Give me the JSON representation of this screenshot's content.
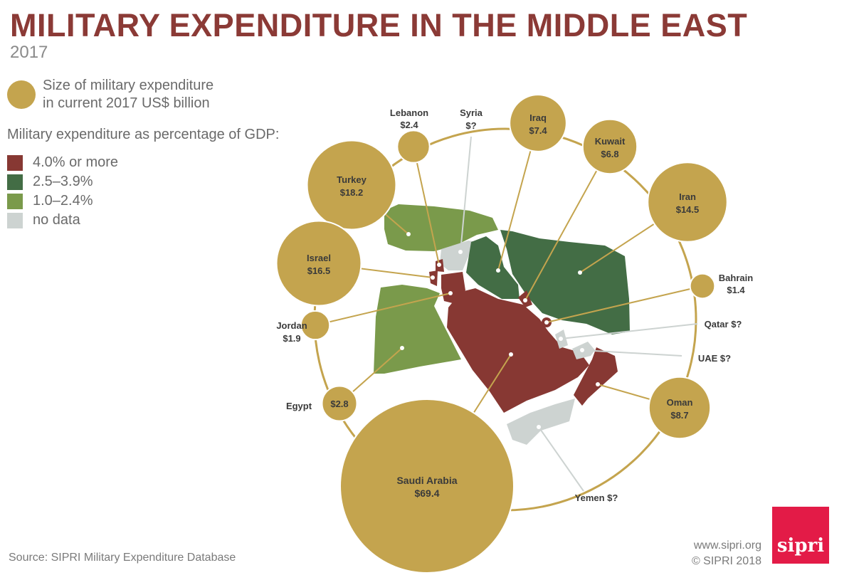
{
  "header": {
    "title": "MILITARY EXPENDITURE IN THE MIDDLE EAST",
    "subtitle": "2017"
  },
  "legend": {
    "size_line1": "Size of military expenditure",
    "size_line2": "in current 2017 US$ billion",
    "gdp_title": "Military expenditure as percentage of GDP:",
    "items": [
      {
        "label": "4.0% or more",
        "color": "#873833"
      },
      {
        "label": "2.5–3.9%",
        "color": "#436d45"
      },
      {
        "label": "1.0–2.4%",
        "color": "#7a9a4b"
      },
      {
        "label": "no data",
        "color": "#cdd3d1"
      }
    ]
  },
  "colors": {
    "bubble": "#c4a44e",
    "ring": "#c4a44e",
    "title": "#8b3a36",
    "leader": "#c4a44e",
    "no_data_leader": "#cdd3d1"
  },
  "chart_data": {
    "type": "bubble-map",
    "unit": "current 2017 US$ billion",
    "countries": [
      {
        "name": "Saudi Arabia",
        "value_label": "$69.4",
        "value": 69.4,
        "gdp_band": "4.0% or more"
      },
      {
        "name": "Turkey",
        "value_label": "$18.2",
        "value": 18.2,
        "gdp_band": "1.0–2.4%"
      },
      {
        "name": "Israel",
        "value_label": "$16.5",
        "value": 16.5,
        "gdp_band": "4.0% or more"
      },
      {
        "name": "Iran",
        "value_label": "$14.5",
        "value": 14.5,
        "gdp_band": "2.5–3.9%"
      },
      {
        "name": "Oman",
        "value_label": "$8.7",
        "value": 8.7,
        "gdp_band": "4.0% or more"
      },
      {
        "name": "Iraq",
        "value_label": "$7.4",
        "value": 7.4,
        "gdp_band": "2.5–3.9%"
      },
      {
        "name": "Kuwait",
        "value_label": "$6.8",
        "value": 6.8,
        "gdp_band": "4.0% or more"
      },
      {
        "name": "Egypt",
        "value_label": "$2.8",
        "value": 2.8,
        "gdp_band": "1.0–2.4%"
      },
      {
        "name": "Lebanon",
        "value_label": "$2.4",
        "value": 2.4,
        "gdp_band": "4.0% or more"
      },
      {
        "name": "Jordan",
        "value_label": "$1.9",
        "value": 1.9,
        "gdp_band": "4.0% or more"
      },
      {
        "name": "Bahrain",
        "value_label": "$1.4",
        "value": 1.4,
        "gdp_band": "4.0% or more"
      },
      {
        "name": "Syria",
        "value_label": "$?",
        "value": null,
        "gdp_band": "no data"
      },
      {
        "name": "Qatar",
        "value_label": "$?",
        "value": null,
        "gdp_band": "no data"
      },
      {
        "name": "UAE",
        "value_label": "$?",
        "value": null,
        "gdp_band": "no data"
      },
      {
        "name": "Yemen",
        "value_label": "$?",
        "value": null,
        "gdp_band": "no data"
      }
    ]
  },
  "footer": {
    "source": "Source: SIPRI Military Expenditure Database",
    "url": "www.sipri.org",
    "copyright": "© SIPRI 2018",
    "logo_text": "sipri"
  }
}
